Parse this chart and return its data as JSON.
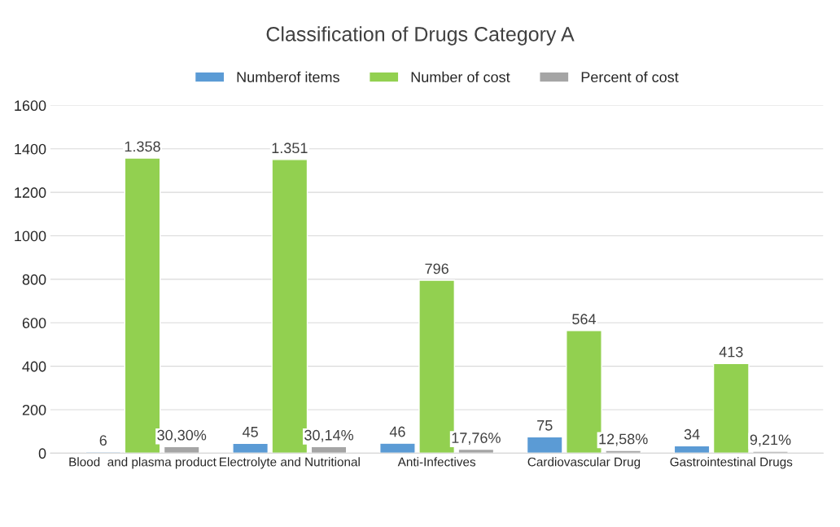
{
  "chart_data": {
    "type": "bar",
    "title": "Classification of Drugs Category A",
    "categories": [
      "Blood  and plasma product",
      "Electrolyte and Nutritional",
      "Anti-Infectives",
      "Cardiovascular Drug",
      "Gastrointestinal Drugs"
    ],
    "series": [
      {
        "name": "Numberof items",
        "color": "#5b9bd5",
        "values": [
          6,
          45,
          46,
          75,
          34
        ],
        "value_labels": [
          "6",
          "45",
          "46",
          "75",
          "34"
        ]
      },
      {
        "name": "Number of cost",
        "color": "#92d050",
        "values": [
          1358,
          1351,
          796,
          564,
          413
        ],
        "value_labels": [
          "1.358",
          "1.351",
          "796",
          "564",
          "413"
        ]
      },
      {
        "name": "Percent of cost",
        "color": "#a5a5a5",
        "values": [
          30.3,
          30.14,
          17.76,
          12.58,
          9.21
        ],
        "value_labels": [
          "30,30%",
          "30,14%",
          "17,76%",
          "12,58%",
          "9,21%"
        ]
      }
    ],
    "ylim": [
      0,
      1600
    ],
    "yticks": [
      0,
      200,
      400,
      600,
      800,
      1000,
      1200,
      1400,
      1600
    ],
    "grid": "y",
    "legend": "top"
  }
}
